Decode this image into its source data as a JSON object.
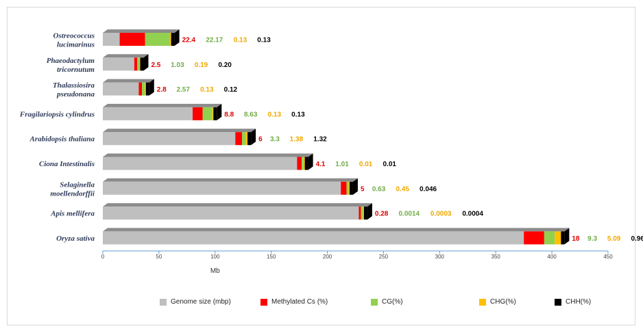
{
  "chart_data": {
    "type": "bar",
    "orientation": "horizontal",
    "stacked_display": true,
    "categories": [
      "Ostreococcus lucimarinus",
      "Phaeodactylum tricornutum",
      "Thalassiosira pseudonana",
      "Fragilariopsis cylindrus",
      "Arabidopsis thaliana",
      "Ciona Intestinalis",
      "Selaginella moellendorffii",
      "Apis mellifera",
      "Oryza sativa"
    ],
    "category_lines": [
      [
        "Ostreococcus",
        "lucimarinus"
      ],
      [
        "Phaeodactylum",
        "tricornutum"
      ],
      [
        "Thalassiosira",
        "pseudonana"
      ],
      [
        "Fragilariopsis cylindrus"
      ],
      [
        "Arabidopsis thaliana"
      ],
      [
        "Ciona Intestinalis"
      ],
      [
        "Selaginella",
        "moellendorffii"
      ],
      [
        "Apis mellifera"
      ],
      [
        "Oryza sativa"
      ]
    ],
    "series": [
      {
        "name": "Genome size (mbp)",
        "color": "#bfbfbf",
        "values": [
          15,
          28,
          32,
          80,
          118,
          173,
          212,
          228,
          375
        ]
      },
      {
        "name": "Methylated Cs (%)",
        "color": "#ff0000",
        "values": [
          22.4,
          2.5,
          2.8,
          8.8,
          6,
          4.1,
          5,
          0.28,
          18
        ]
      },
      {
        "name": "CG(%)",
        "color": "#92d050",
        "values": [
          22.17,
          1.03,
          2.57,
          8.63,
          3.3,
          1.01,
          0.63,
          0.0014,
          9.3
        ]
      },
      {
        "name": "CHG(%)",
        "color": "#ffc000",
        "values": [
          0.13,
          0.19,
          0.13,
          0.13,
          1.38,
          0.01,
          0.45,
          0.0003,
          5.09
        ]
      },
      {
        "name": "CHH(%)",
        "color": "#000000",
        "values": [
          0.13,
          0.2,
          0.12,
          0.13,
          1.32,
          0.01,
          0.046,
          0.0004,
          0.96
        ]
      }
    ],
    "data_labels": [
      [
        "22.4",
        "22.17",
        "0.13",
        "0.13"
      ],
      [
        "2.5",
        "1.03",
        "0.19",
        "0.20"
      ],
      [
        "2.8",
        "2.57",
        "0.13",
        "0.12"
      ],
      [
        "8.8",
        "8.63",
        "0.13",
        "0.13"
      ],
      [
        "6",
        "3.3",
        "1.38",
        "1.32"
      ],
      [
        "4.1",
        "1.01",
        "0.01",
        "0.01"
      ],
      [
        "5",
        "0.63",
        "0.45",
        "0.046"
      ],
      [
        "0.28",
        "0.0014",
        "0.0003",
        "0.0004"
      ],
      [
        "18",
        "9.3",
        "5.09",
        "0.96"
      ]
    ],
    "label_colors": [
      "#e00000",
      "#70ad47",
      "#f0a800",
      "#000000"
    ],
    "xlabel": "Mb",
    "xlim": [
      0,
      450
    ],
    "xticks": [
      "0",
      "50",
      "100",
      "150",
      "200",
      "250",
      "300",
      "350",
      "400",
      "450"
    ],
    "legend_position": "bottom"
  }
}
